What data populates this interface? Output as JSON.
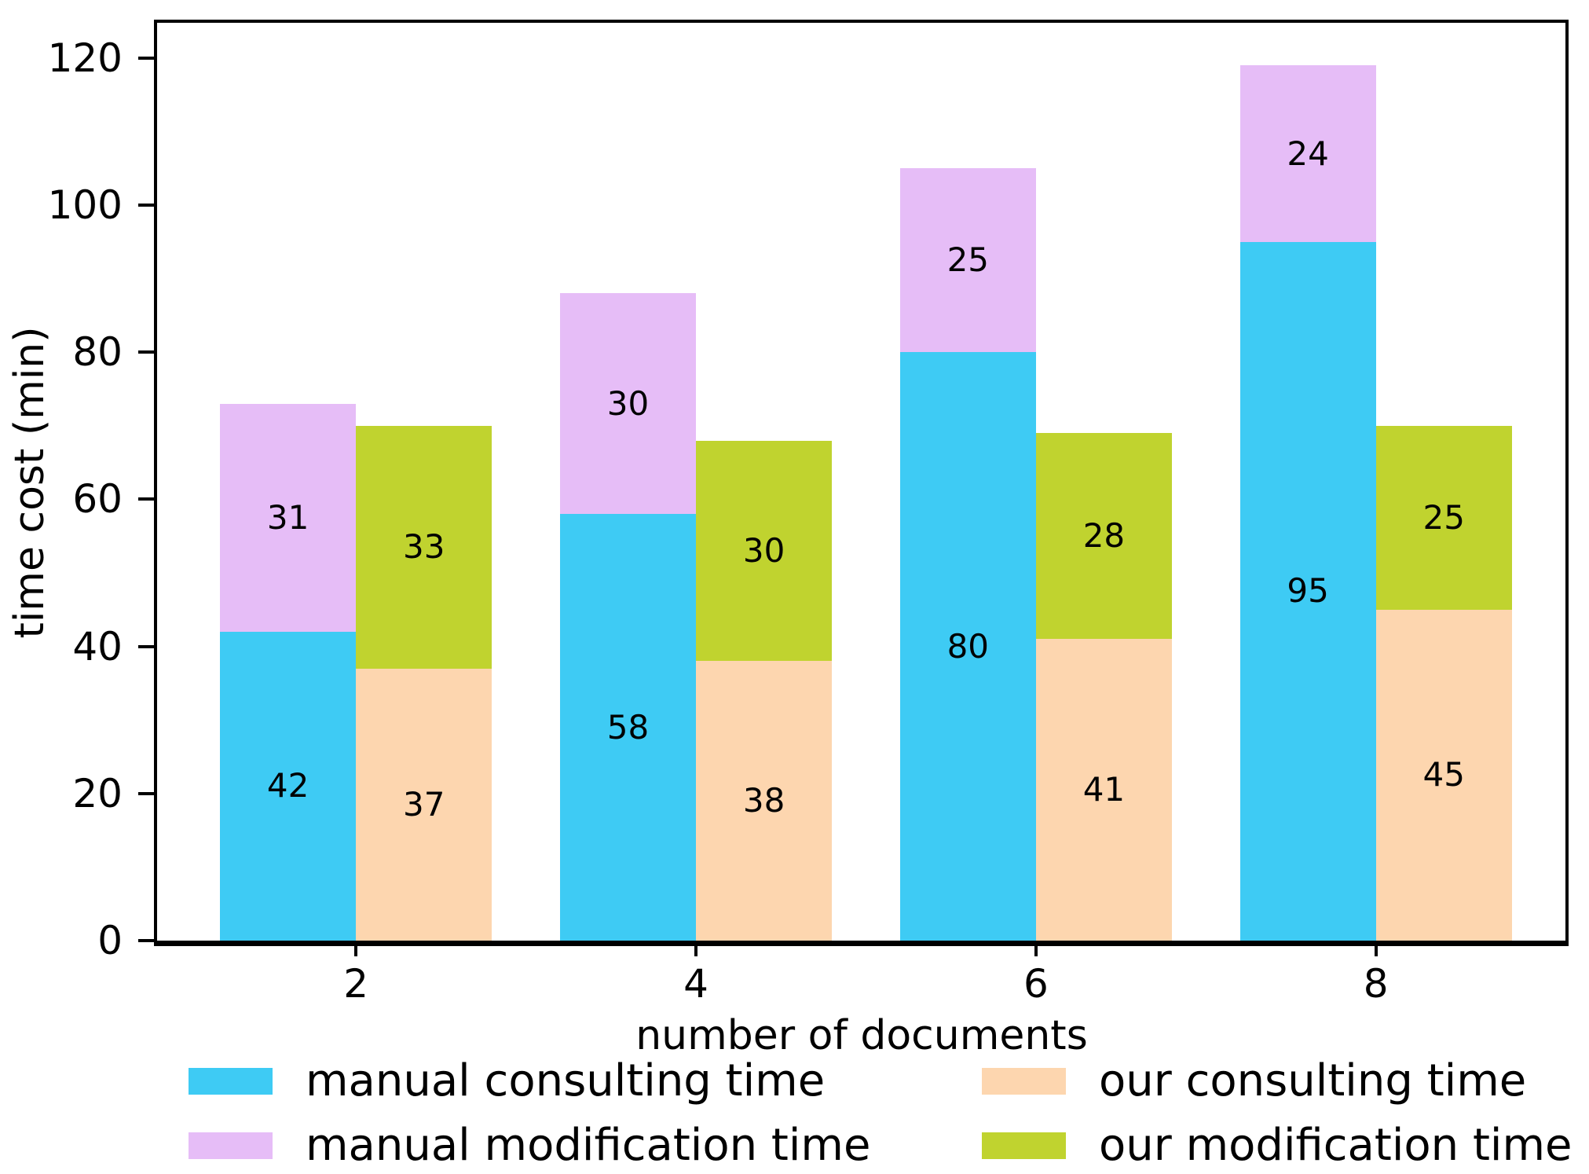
{
  "figure": {
    "background": "#ffffff",
    "text_color": "#000000",
    "spine_color": "#000000"
  },
  "chart_data": {
    "type": "bar",
    "stacked": true,
    "orientation": "vertical",
    "title": "",
    "xlabel": "number of documents",
    "ylabel": "time cost (min)",
    "categories": [
      2,
      4,
      6,
      8
    ],
    "xlim": [
      0.83,
      9.115
    ],
    "ylim": [
      0,
      124.8
    ],
    "yticks": [
      0,
      20,
      40,
      60,
      80,
      100,
      120
    ],
    "grid": false,
    "bar_width_units": 0.8,
    "bar_value_labels_shown": true,
    "legend_position": "below-axis",
    "legend_columns": 2,
    "series": [
      {
        "name": "manual consulting time",
        "color": "#3ecbf4",
        "stack": "manual",
        "stack_order": 0,
        "values": [
          42,
          58,
          80,
          95
        ]
      },
      {
        "name": "manual modification time",
        "color": "#e6bdf7",
        "stack": "manual",
        "stack_order": 1,
        "values": [
          31,
          30,
          25,
          24
        ]
      },
      {
        "name": "our consulting time",
        "color": "#fdd6af",
        "stack": "our",
        "stack_order": 0,
        "values": [
          37,
          38,
          41,
          45
        ]
      },
      {
        "name": "our modification time",
        "color": "#c0d32f",
        "stack": "our",
        "stack_order": 1,
        "values": [
          33,
          30,
          28,
          25
        ]
      }
    ]
  }
}
